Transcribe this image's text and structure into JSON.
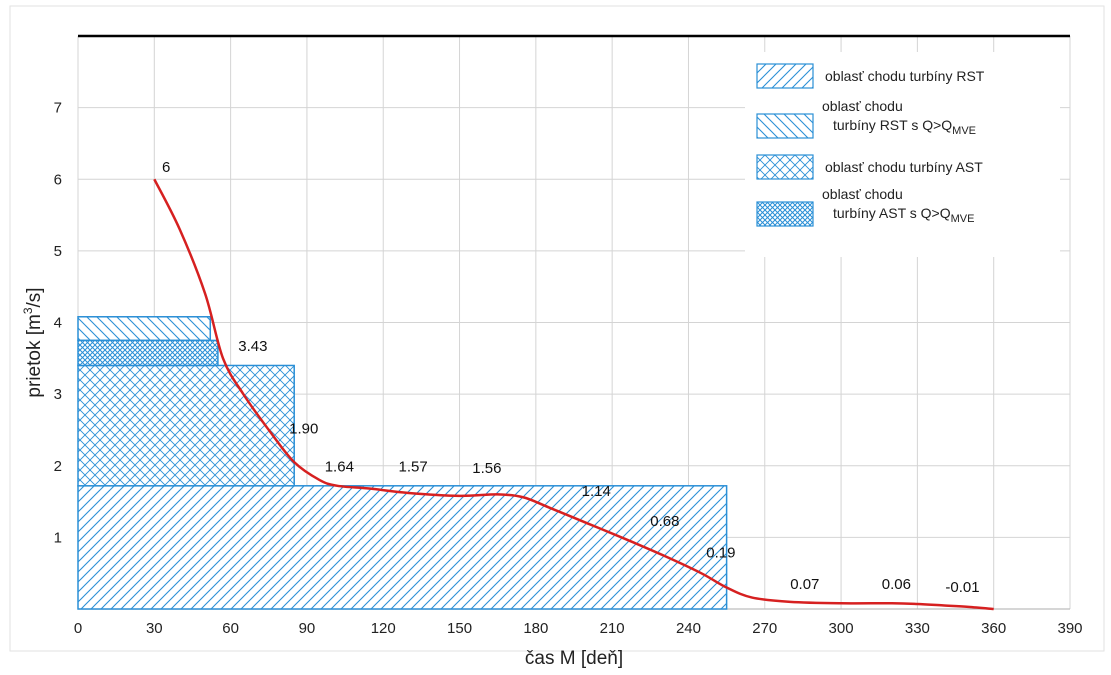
{
  "chart_data": {
    "type": "line",
    "xlabel": "čas M [deň]",
    "ylabel_main": "prietok [m",
    "ylabel_sup": "3",
    "ylabel_tail": "/s]",
    "xlim": [
      0,
      390
    ],
    "ylim": [
      0,
      8
    ],
    "x_ticks": [
      0,
      30,
      60,
      90,
      120,
      150,
      180,
      210,
      240,
      270,
      300,
      330,
      360,
      390
    ],
    "y_ticks": [
      1,
      2,
      3,
      4,
      5,
      6,
      7
    ],
    "grid": true,
    "legend_position": "top-right",
    "curve": {
      "color": "#d62020",
      "x": [
        30,
        40,
        50,
        57,
        65,
        75,
        85,
        95,
        102,
        115,
        130,
        150,
        165,
        175,
        185,
        200,
        215,
        230,
        245,
        255,
        265,
        280,
        300,
        320,
        330,
        340,
        350,
        360
      ],
      "y": [
        6.0,
        5.3,
        4.4,
        3.5,
        3.0,
        2.5,
        2.05,
        1.8,
        1.72,
        1.68,
        1.62,
        1.58,
        1.6,
        1.56,
        1.42,
        1.2,
        0.98,
        0.75,
        0.5,
        0.3,
        0.16,
        0.1,
        0.08,
        0.08,
        0.07,
        0.05,
        0.03,
        0.0
      ]
    },
    "regions": [
      {
        "name": "oblasť chodu turbíny RST",
        "x": [
          0,
          255
        ],
        "y": [
          0,
          1.72
        ],
        "pattern": "diag-fwd"
      },
      {
        "name": "oblasť chodu turbíny RST s Q>Q_MVE",
        "x": [
          0,
          52
        ],
        "y": [
          3.75,
          4.08
        ],
        "pattern": "diag-back"
      },
      {
        "name": "oblasť chodu turbíny AST",
        "x": [
          0,
          85
        ],
        "y": [
          1.72,
          3.4
        ],
        "pattern": "cross"
      },
      {
        "name": "oblasť chodu turbíny AST s Q>Q_MVE",
        "x": [
          0,
          55
        ],
        "y": [
          3.4,
          3.75
        ],
        "pattern": "cross-dense"
      }
    ],
    "annotations": [
      {
        "text": "6",
        "x": 33,
        "y": 6.1
      },
      {
        "text": "3.43",
        "x": 63,
        "y": 3.6
      },
      {
        "text": "1.90",
        "x": 83,
        "y": 2.45
      },
      {
        "text": "1.64",
        "x": 97,
        "y": 1.92
      },
      {
        "text": "1.57",
        "x": 126,
        "y": 1.92
      },
      {
        "text": "1.56",
        "x": 155,
        "y": 1.9
      },
      {
        "text": "1.14",
        "x": 198,
        "y": 1.58
      },
      {
        "text": "0.68",
        "x": 225,
        "y": 1.16
      },
      {
        "text": "0.19",
        "x": 247,
        "y": 0.72
      },
      {
        "text": "0.07",
        "x": 280,
        "y": 0.28
      },
      {
        "text": "0.06",
        "x": 316,
        "y": 0.28
      },
      {
        "text": "-0.01",
        "x": 341,
        "y": 0.24
      }
    ],
    "legend": [
      {
        "line1": "oblasť chodu turbíny RST",
        "line2": "",
        "sub": "",
        "pattern": "diag-fwd"
      },
      {
        "line1": "oblasť chodu",
        "line2": "turbíny RST s Q>Q",
        "sub": "MVE",
        "pattern": "diag-back"
      },
      {
        "line1": "oblasť chodu turbíny AST",
        "line2": "",
        "sub": "",
        "pattern": "cross"
      },
      {
        "line1": "oblasť chodu",
        "line2": "turbíny AST s Q>Q",
        "sub": "MVE",
        "pattern": "cross-dense"
      }
    ],
    "colors": {
      "hatch": "#2a8fd6",
      "curve": "#d62020",
      "grid": "#d4d4d4",
      "top_line": "#000000"
    }
  }
}
